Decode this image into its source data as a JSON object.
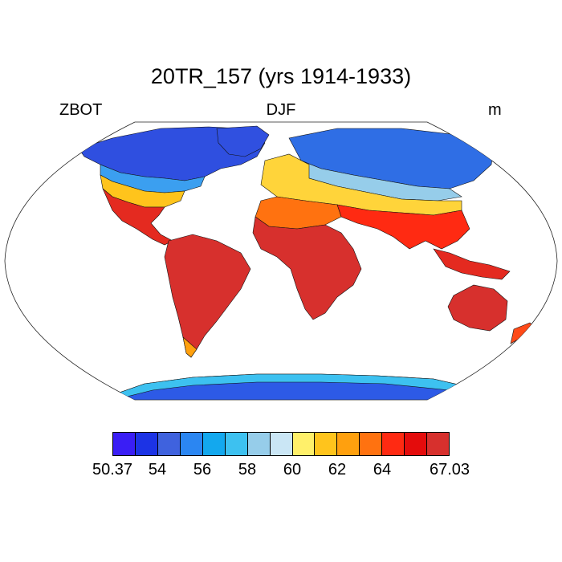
{
  "title": "20TR_157 (yrs 1914-1933)",
  "left_label": "ZBOT",
  "center_label": "DJF",
  "right_label": "m",
  "colorbar": {
    "colors": [
      "#3a1ef5",
      "#1c33e5",
      "#3f62de",
      "#2b86f2",
      "#13a8ee",
      "#3dc1f0",
      "#96cdea",
      "#cae6f5",
      "#fff06a",
      "#ffc41c",
      "#ffa00e",
      "#ff7210",
      "#ff2a12",
      "#e40c0c",
      "#d7302d"
    ],
    "tick_labels": [
      {
        "text": "50.37",
        "slot": 0
      },
      {
        "text": "54",
        "slot": 2
      },
      {
        "text": "56",
        "slot": 4
      },
      {
        "text": "58",
        "slot": 6
      },
      {
        "text": "60",
        "slot": 8
      },
      {
        "text": "62",
        "slot": 10
      },
      {
        "text": "64",
        "slot": 12
      },
      {
        "text": "67.03",
        "slot": 15
      }
    ]
  }
}
